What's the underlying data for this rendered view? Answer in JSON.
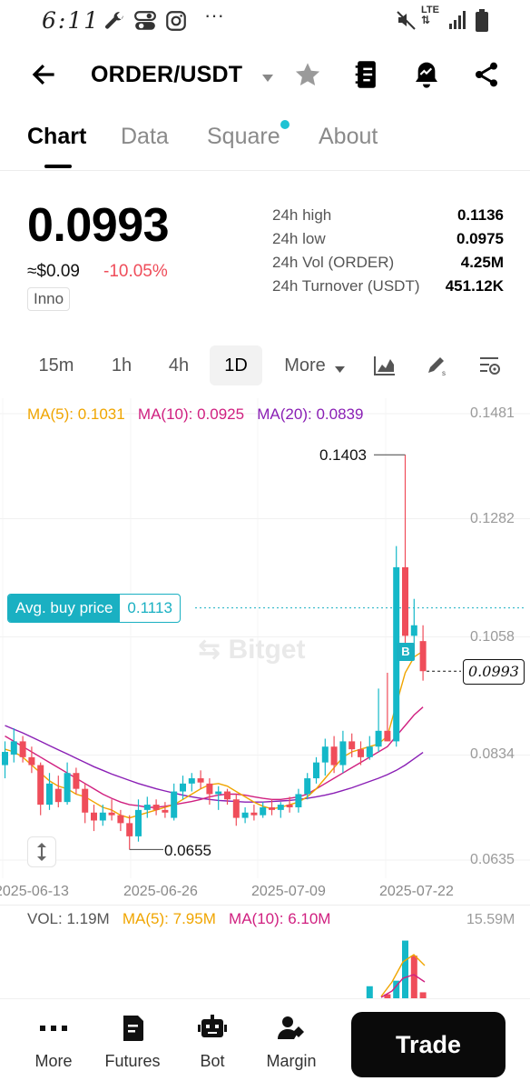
{
  "status_bar": {
    "time": "6:11",
    "network": "LTE"
  },
  "header": {
    "pair": "ORDER/USDT"
  },
  "tabs": [
    {
      "label": "Chart",
      "active": true
    },
    {
      "label": "Data",
      "active": false
    },
    {
      "label": "Square",
      "active": false,
      "has_dot": true
    },
    {
      "label": "About",
      "active": false
    }
  ],
  "price": {
    "last": "0.0993",
    "usd_approx": "≈$0.09",
    "change": "-10.05%",
    "tag": "Inno"
  },
  "stats": [
    {
      "label": "24h high",
      "value": "0.1136"
    },
    {
      "label": "24h low",
      "value": "0.0975"
    },
    {
      "label": "24h Vol (ORDER)",
      "value": "4.25M"
    },
    {
      "label": "24h Turnover (USDT)",
      "value": "451.12K"
    }
  ],
  "intervals": [
    {
      "label": "15m",
      "active": false
    },
    {
      "label": "1h",
      "active": false
    },
    {
      "label": "4h",
      "active": false
    },
    {
      "label": "1D",
      "active": true
    },
    {
      "label": "More",
      "active": false
    }
  ],
  "chart": {
    "ma_legend": {
      "ma5": "MA(5): 0.1031",
      "ma10": "MA(10): 0.0925",
      "ma20": "MA(20): 0.0839"
    },
    "y_ticks": [
      "0.1481",
      "0.1282",
      "0.1058",
      "0.0834",
      "0.0635"
    ],
    "x_ticks": [
      "2025-06-13",
      "2025-06-26",
      "2025-07-09",
      "2025-07-22"
    ],
    "avg_buy_label": "Avg. buy price",
    "avg_buy_value": "0.1113",
    "current_price_tag": "0.0993",
    "high_label": "0.1403",
    "low_label": "0.0655",
    "watermark": "Bitget",
    "buy_marker": "B"
  },
  "volume": {
    "vol": "VOL: 1.19M",
    "ma5": "MA(5): 7.95M",
    "ma10": "MA(10): 6.10M",
    "max": "15.59M"
  },
  "chart_data": {
    "type": "candlestick",
    "title": "ORDER/USDT 1D",
    "interval": "1D",
    "x_labels_shown": [
      "2025-06-13",
      "2025-06-26",
      "2025-07-09",
      "2025-07-22"
    ],
    "ylim": [
      0.0635,
      0.1481
    ],
    "y_ticks": [
      0.1481,
      0.1282,
      0.1058,
      0.0834,
      0.0635
    ],
    "avg_buy_price": 0.1113,
    "last_price": 0.0993,
    "marked_high": 0.1403,
    "marked_low": 0.0655,
    "candles": [
      {
        "o": 0.0815,
        "h": 0.086,
        "l": 0.079,
        "c": 0.084
      },
      {
        "o": 0.0835,
        "h": 0.0885,
        "l": 0.082,
        "c": 0.086
      },
      {
        "o": 0.086,
        "h": 0.087,
        "l": 0.082,
        "c": 0.083
      },
      {
        "o": 0.083,
        "h": 0.085,
        "l": 0.08,
        "c": 0.0815
      },
      {
        "o": 0.0815,
        "h": 0.082,
        "l": 0.072,
        "c": 0.074
      },
      {
        "o": 0.074,
        "h": 0.08,
        "l": 0.073,
        "c": 0.078
      },
      {
        "o": 0.077,
        "h": 0.0795,
        "l": 0.0735,
        "c": 0.0745
      },
      {
        "o": 0.0745,
        "h": 0.082,
        "l": 0.074,
        "c": 0.08
      },
      {
        "o": 0.08,
        "h": 0.081,
        "l": 0.076,
        "c": 0.077
      },
      {
        "o": 0.077,
        "h": 0.078,
        "l": 0.0705,
        "c": 0.0725
      },
      {
        "o": 0.0725,
        "h": 0.074,
        "l": 0.069,
        "c": 0.071
      },
      {
        "o": 0.071,
        "h": 0.074,
        "l": 0.07,
        "c": 0.0725
      },
      {
        "o": 0.0725,
        "h": 0.075,
        "l": 0.071,
        "c": 0.072
      },
      {
        "o": 0.072,
        "h": 0.073,
        "l": 0.069,
        "c": 0.0705
      },
      {
        "o": 0.0705,
        "h": 0.072,
        "l": 0.0655,
        "c": 0.068
      },
      {
        "o": 0.068,
        "h": 0.075,
        "l": 0.067,
        "c": 0.073
      },
      {
        "o": 0.073,
        "h": 0.0755,
        "l": 0.0715,
        "c": 0.074
      },
      {
        "o": 0.074,
        "h": 0.075,
        "l": 0.072,
        "c": 0.073
      },
      {
        "o": 0.073,
        "h": 0.0745,
        "l": 0.0715,
        "c": 0.0725
      },
      {
        "o": 0.0715,
        "h": 0.078,
        "l": 0.071,
        "c": 0.0765
      },
      {
        "o": 0.0765,
        "h": 0.0795,
        "l": 0.075,
        "c": 0.078
      },
      {
        "o": 0.078,
        "h": 0.08,
        "l": 0.0765,
        "c": 0.079
      },
      {
        "o": 0.079,
        "h": 0.0805,
        "l": 0.077,
        "c": 0.0782
      },
      {
        "o": 0.078,
        "h": 0.079,
        "l": 0.074,
        "c": 0.076
      },
      {
        "o": 0.076,
        "h": 0.0775,
        "l": 0.073,
        "c": 0.0765
      },
      {
        "o": 0.0765,
        "h": 0.077,
        "l": 0.074,
        "c": 0.075
      },
      {
        "o": 0.075,
        "h": 0.076,
        "l": 0.07,
        "c": 0.0715
      },
      {
        "o": 0.0715,
        "h": 0.0735,
        "l": 0.0705,
        "c": 0.0725
      },
      {
        "o": 0.0725,
        "h": 0.074,
        "l": 0.071,
        "c": 0.072
      },
      {
        "o": 0.072,
        "h": 0.0745,
        "l": 0.0715,
        "c": 0.0735
      },
      {
        "o": 0.0735,
        "h": 0.075,
        "l": 0.072,
        "c": 0.073
      },
      {
        "o": 0.073,
        "h": 0.0745,
        "l": 0.0715,
        "c": 0.074
      },
      {
        "o": 0.074,
        "h": 0.0755,
        "l": 0.0725,
        "c": 0.0735
      },
      {
        "o": 0.0735,
        "h": 0.077,
        "l": 0.0725,
        "c": 0.076
      },
      {
        "o": 0.076,
        "h": 0.08,
        "l": 0.075,
        "c": 0.079
      },
      {
        "o": 0.079,
        "h": 0.083,
        "l": 0.078,
        "c": 0.082
      },
      {
        "o": 0.082,
        "h": 0.0865,
        "l": 0.0795,
        "c": 0.085
      },
      {
        "o": 0.085,
        "h": 0.087,
        "l": 0.08,
        "c": 0.0815
      },
      {
        "o": 0.0815,
        "h": 0.088,
        "l": 0.08,
        "c": 0.086
      },
      {
        "o": 0.086,
        "h": 0.0875,
        "l": 0.083,
        "c": 0.0845
      },
      {
        "o": 0.0845,
        "h": 0.086,
        "l": 0.0815,
        "c": 0.083
      },
      {
        "o": 0.083,
        "h": 0.087,
        "l": 0.0825,
        "c": 0.085
      },
      {
        "o": 0.085,
        "h": 0.096,
        "l": 0.084,
        "c": 0.088
      },
      {
        "o": 0.088,
        "h": 0.099,
        "l": 0.086,
        "c": 0.086
      },
      {
        "o": 0.086,
        "h": 0.123,
        "l": 0.085,
        "c": 0.119
      },
      {
        "o": 0.119,
        "h": 0.1403,
        "l": 0.104,
        "c": 0.106
      },
      {
        "o": 0.106,
        "h": 0.113,
        "l": 0.102,
        "c": 0.108
      },
      {
        "o": 0.105,
        "h": 0.108,
        "l": 0.0975,
        "c": 0.0993
      }
    ],
    "ma5": [
      0.0845,
      0.084,
      0.083,
      0.0815,
      0.08,
      0.0785,
      0.0775,
      0.077,
      0.076,
      0.0755,
      0.0745,
      0.0735,
      0.073,
      0.072,
      0.0715,
      0.072,
      0.0725,
      0.073,
      0.0735,
      0.074,
      0.075,
      0.076,
      0.077,
      0.0778,
      0.078,
      0.0775,
      0.0765,
      0.0755,
      0.0745,
      0.0737,
      0.0732,
      0.0735,
      0.074,
      0.0745,
      0.0755,
      0.077,
      0.079,
      0.081,
      0.083,
      0.084,
      0.0845,
      0.085,
      0.0855,
      0.087,
      0.093,
      0.099,
      0.102,
      0.1031
    ],
    "ma10": [
      0.087,
      0.086,
      0.085,
      0.084,
      0.083,
      0.082,
      0.081,
      0.08,
      0.079,
      0.078,
      0.077,
      0.076,
      0.0752,
      0.0745,
      0.074,
      0.0738,
      0.0735,
      0.0735,
      0.0737,
      0.074,
      0.0743,
      0.0746,
      0.075,
      0.0755,
      0.0758,
      0.076,
      0.076,
      0.0758,
      0.0755,
      0.0752,
      0.075,
      0.075,
      0.0752,
      0.0755,
      0.076,
      0.077,
      0.078,
      0.079,
      0.08,
      0.081,
      0.082,
      0.083,
      0.084,
      0.085,
      0.087,
      0.089,
      0.091,
      0.0925
    ],
    "ma20": [
      0.089,
      0.0883,
      0.0876,
      0.0868,
      0.086,
      0.0852,
      0.0844,
      0.0836,
      0.0828,
      0.082,
      0.0812,
      0.0805,
      0.0798,
      0.0792,
      0.0786,
      0.078,
      0.0775,
      0.077,
      0.0766,
      0.0762,
      0.0758,
      0.0755,
      0.0752,
      0.075,
      0.0748,
      0.0747,
      0.0746,
      0.0745,
      0.0745,
      0.0745,
      0.0746,
      0.0747,
      0.0748,
      0.075,
      0.0752,
      0.0755,
      0.0758,
      0.0762,
      0.0767,
      0.0772,
      0.0778,
      0.0784,
      0.079,
      0.0797,
      0.0805,
      0.0815,
      0.0827,
      0.0839
    ],
    "volume_visible": [
      0,
      0,
      0,
      0,
      0,
      0,
      0,
      0,
      0,
      0,
      0,
      0,
      0,
      0,
      0,
      0,
      0,
      0,
      0,
      0,
      0,
      0,
      0,
      0,
      0,
      0,
      0,
      0,
      0,
      0,
      0,
      0,
      0,
      0,
      0,
      0,
      0,
      0,
      0,
      0,
      0,
      2.4,
      0,
      0.8,
      3.5,
      11.5,
      8.5,
      1.19
    ],
    "volume_up": [
      false,
      false,
      false,
      false,
      false,
      false,
      false,
      false,
      false,
      false,
      false,
      false,
      false,
      false,
      false,
      false,
      false,
      false,
      false,
      false,
      false,
      false,
      false,
      false,
      false,
      false,
      false,
      false,
      false,
      false,
      false,
      false,
      false,
      false,
      false,
      false,
      false,
      false,
      false,
      false,
      false,
      true,
      false,
      false,
      true,
      true,
      false,
      false
    ],
    "volume_max": 15.59
  },
  "bottom_nav": [
    {
      "label": "More"
    },
    {
      "label": "Futures"
    },
    {
      "label": "Bot"
    },
    {
      "label": "Margin"
    }
  ],
  "trade_label": "Trade",
  "colors": {
    "up": "#14b8c8",
    "down": "#ef4d5a",
    "accent": "#1ab0c2"
  }
}
